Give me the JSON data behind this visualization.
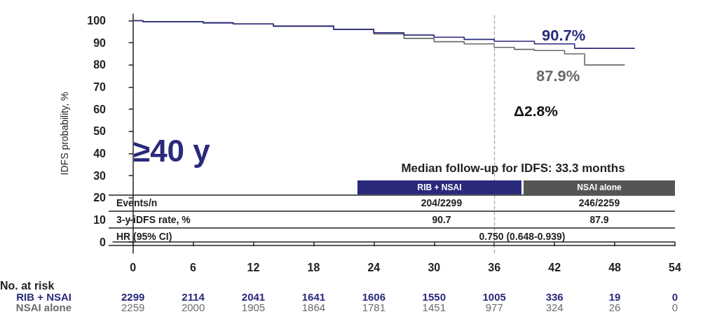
{
  "chart_data": {
    "type": "step",
    "ylabel": "IDFS probability, %",
    "xlim": [
      -2,
      54
    ],
    "xticks": [
      0,
      6,
      12,
      18,
      24,
      30,
      36,
      42,
      48,
      54
    ],
    "ylim": [
      -5,
      103
    ],
    "yticks": [
      0,
      10,
      20,
      30,
      40,
      50,
      60,
      70,
      80,
      90,
      100
    ],
    "series": [
      {
        "color": "#2a2a7c",
        "x": [
          0,
          1,
          7,
          10,
          14,
          20,
          24,
          27,
          30,
          33,
          36,
          40,
          44,
          50
        ],
        "values": [
          100,
          99.5,
          99,
          98.5,
          97.5,
          96,
          94.5,
          93.5,
          92.5,
          91.5,
          90.7,
          89.5,
          87.5,
          87.5
        ]
      },
      {
        "color": "#6a6a6a",
        "x": [
          0,
          1,
          7,
          10,
          14,
          20,
          24,
          27,
          30,
          33,
          36,
          38,
          40,
          43,
          45,
          49
        ],
        "values": [
          100,
          99.5,
          99,
          98.5,
          97.5,
          96,
          94,
          92,
          90.5,
          89.5,
          87.9,
          87,
          86.5,
          85,
          80,
          80
        ]
      }
    ],
    "ref_lines": [
      {
        "axis": "x",
        "value": 36,
        "color": "#aaaaaa",
        "line_style": "dashed"
      }
    ],
    "annotations": [
      "≥40 y",
      "90.7%",
      "87.9%",
      "Δ2.8%",
      "Median follow-up for IDFS: 33.3 months",
      "RIB + NSAI",
      "NSAI alone",
      "Events/n",
      "204/2299",
      "246/2259",
      "3-y iDFS rate, %",
      "90.7",
      "87.9",
      "HR (95% CI)",
      "0.750 (0.648-0.939)",
      "No. at risk",
      "RIB + NSAI",
      "NSAI alone",
      "2299",
      "2114",
      "2041",
      "1641",
      "1606",
      "1550",
      "1005",
      "336",
      "19",
      "0",
      "2259",
      "2000",
      "1905",
      "1864",
      "1781",
      "1451",
      "977",
      "324",
      "26",
      "0"
    ]
  }
}
